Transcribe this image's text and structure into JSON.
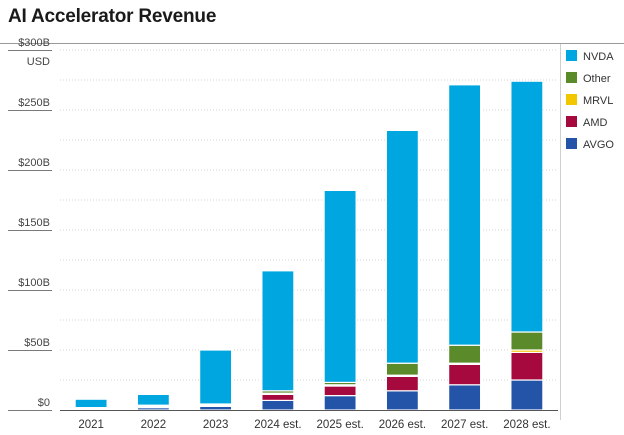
{
  "title": "AI Accelerator Revenue",
  "chart_data": {
    "type": "bar",
    "stacked": true,
    "title": "AI Accelerator Revenue",
    "unit_label": "USD",
    "ylim": [
      0,
      300
    ],
    "yticks": [
      {
        "value": 0,
        "label": "$0"
      },
      {
        "value": 50,
        "label": "$50B"
      },
      {
        "value": 100,
        "label": "$100B"
      },
      {
        "value": 150,
        "label": "$150B"
      },
      {
        "value": 200,
        "label": "$200B"
      },
      {
        "value": 250,
        "label": "$250B"
      },
      {
        "value": 300,
        "label": "$300B"
      }
    ],
    "minor_grid_step": 25,
    "categories": [
      "2021",
      "2022",
      "2023",
      "2024 est.",
      "2025 est.",
      "2026 est.",
      "2027 est.",
      "2028 est."
    ],
    "series": [
      {
        "name": "AVGO",
        "color": "#2354a8",
        "values": [
          1,
          2,
          3,
          8,
          12,
          16,
          21,
          25
        ]
      },
      {
        "name": "AMD",
        "color": "#a6093d",
        "values": [
          0,
          0,
          0,
          5,
          8,
          12,
          17,
          23
        ]
      },
      {
        "name": "MRVL",
        "color": "#f2c700",
        "values": [
          0,
          1,
          1,
          1,
          1,
          1,
          1,
          2
        ]
      },
      {
        "name": "Other",
        "color": "#5b8a2a",
        "values": [
          1,
          1,
          1,
          2,
          2,
          10,
          15,
          15
        ]
      },
      {
        "name": "NVDA",
        "color": "#00a6e0",
        "values": [
          7,
          9,
          45,
          100,
          160,
          194,
          217,
          209
        ]
      }
    ],
    "legend_order": [
      "NVDA",
      "Other",
      "MRVL",
      "AMD",
      "AVGO"
    ],
    "legend_position": "right",
    "grid": "horizontal-dotted"
  }
}
